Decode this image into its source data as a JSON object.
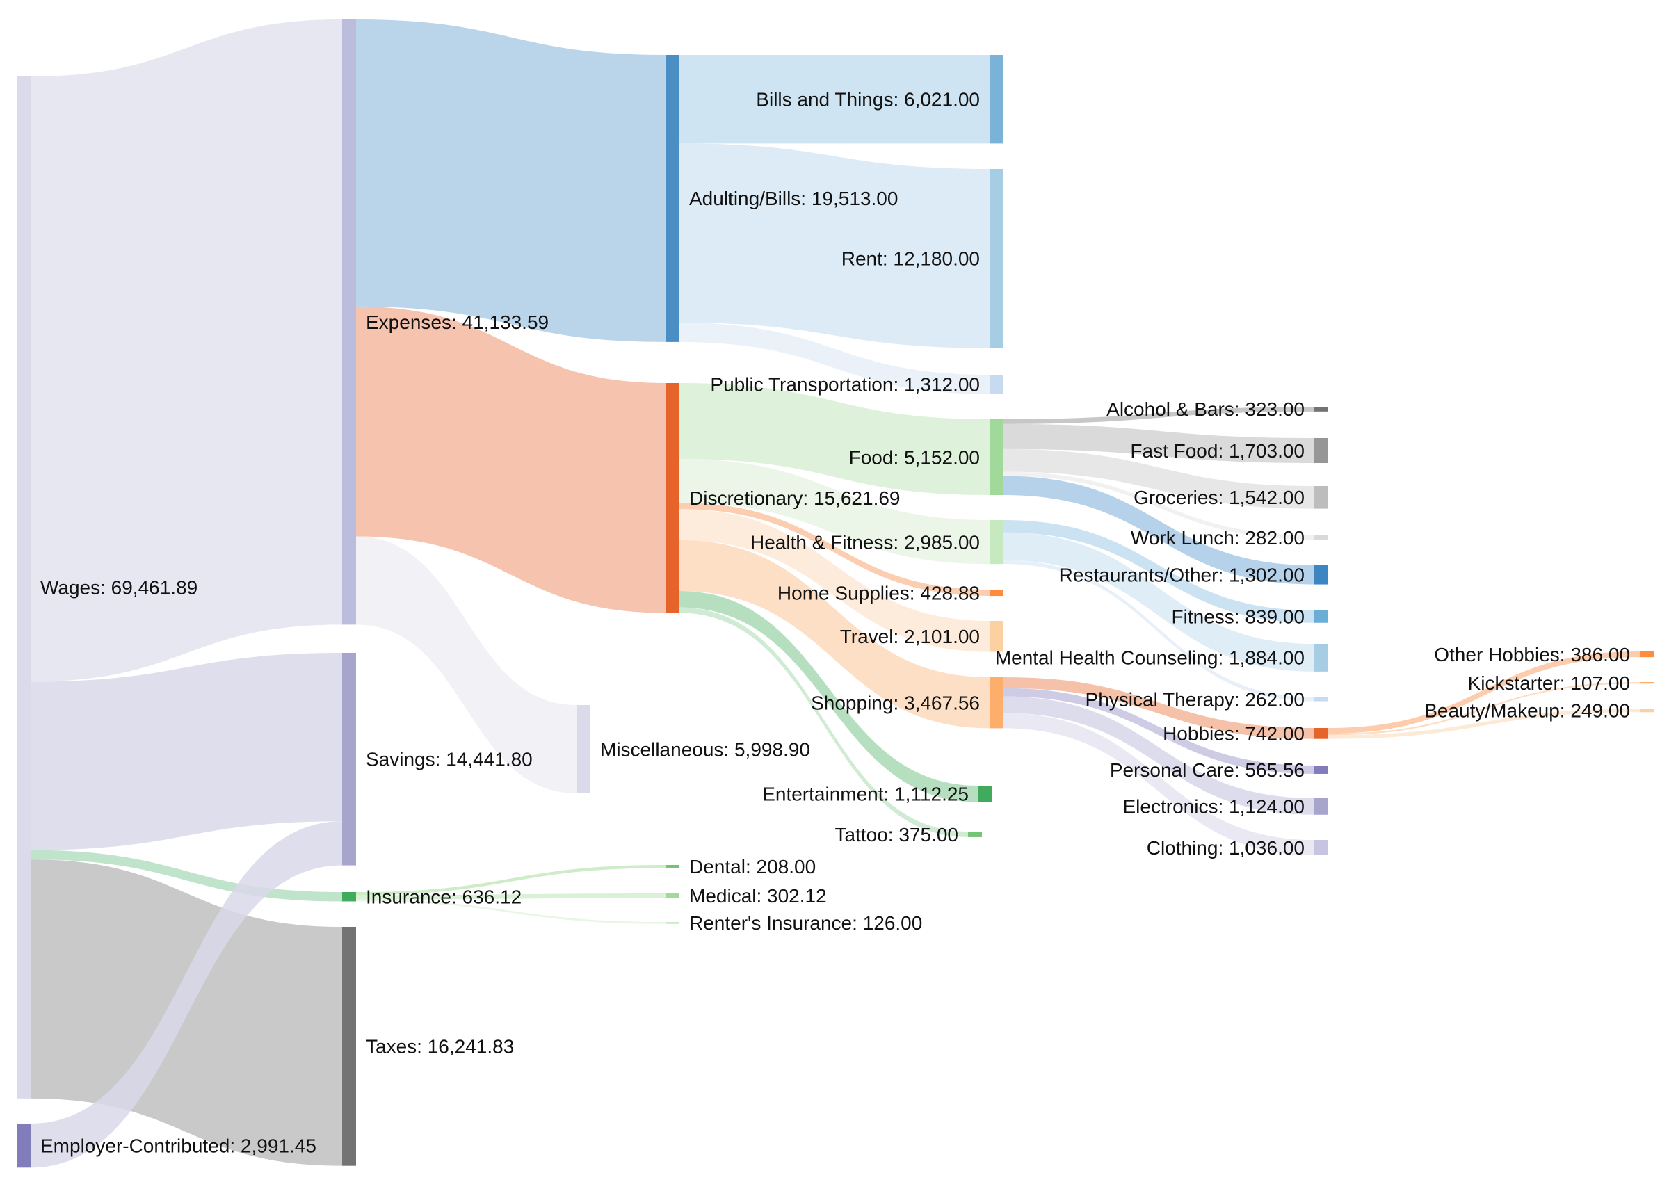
{
  "chart_data": {
    "type": "sankey",
    "title": "",
    "value_format": "comma-2-decimals",
    "nodes": [
      {
        "id": "wages",
        "name": "Wages",
        "value": 69461.89,
        "color": "#dadaeb",
        "link_color": "#e3e3f0"
      },
      {
        "id": "employer",
        "name": "Employer-Contributed",
        "value": 2991.45,
        "color": "#807dba",
        "link_color": "#dcdaeb"
      },
      {
        "id": "expenses",
        "name": "Expenses",
        "value": 41133.59,
        "color": "#bcbddc",
        "link_color": "#e3e3f0"
      },
      {
        "id": "savings",
        "name": "Savings",
        "value": 14441.8,
        "color": "#a8a5cd",
        "link_color": "#d9d8ea"
      },
      {
        "id": "insurance",
        "name": "Insurance",
        "value": 636.12,
        "color": "#41ab5d",
        "link_color": "#b5dfc2"
      },
      {
        "id": "taxes",
        "name": "Taxes",
        "value": 16241.83,
        "color": "#737373",
        "link_color": "#bfbfbf"
      },
      {
        "id": "adulting",
        "name": "Adulting/Bills",
        "value": 19513.0,
        "color": "#4a8ec4",
        "link_color": "#aecde6"
      },
      {
        "id": "discretionary",
        "name": "Discretionary",
        "value": 15621.69,
        "color": "#e6642a",
        "link_color": "#f4b9a0"
      },
      {
        "id": "misc",
        "name": "Miscellaneous",
        "value": 5998.9,
        "color": "#dadaeb",
        "link_color": "#eeeef5"
      },
      {
        "id": "dental",
        "name": "Dental",
        "value": 208.0,
        "color": "#74c476",
        "link_color": "#c7e9c0"
      },
      {
        "id": "medical",
        "name": "Medical",
        "value": 302.12,
        "color": "#a1d99b",
        "link_color": "#d4eed0"
      },
      {
        "id": "renters",
        "name": "Renter's Insurance",
        "value": 126.0,
        "color": "#c7e9c0",
        "link_color": "#e5f4e1"
      },
      {
        "id": "bills",
        "name": "Bills and Things",
        "value": 6021.0,
        "color": "#7bb3d8",
        "link_color": "#c5dff0"
      },
      {
        "id": "rent",
        "name": "Rent",
        "value": 12180.0,
        "color": "#a6cde4",
        "link_color": "#d6e8f4"
      },
      {
        "id": "pubtrans",
        "name": "Public Transportation",
        "value": 1312.0,
        "color": "#c6dbef",
        "link_color": "#e6eff8"
      },
      {
        "id": "food",
        "name": "Food",
        "value": 5152.0,
        "color": "#a1d99b",
        "link_color": "#d8efd4"
      },
      {
        "id": "health",
        "name": "Health & Fitness",
        "value": 2985.0,
        "color": "#c7e9c0",
        "link_color": "#e7f5e4"
      },
      {
        "id": "homesupplies",
        "name": "Home Supplies",
        "value": 428.88,
        "color": "#fd8d3c",
        "link_color": "#fcc5a3"
      },
      {
        "id": "travel",
        "name": "Travel",
        "value": 2101.0,
        "color": "#fdd0a2",
        "link_color": "#fde8d5"
      },
      {
        "id": "shopping",
        "name": "Shopping",
        "value": 3467.56,
        "color": "#fdae6b",
        "link_color": "#fdd9bb"
      },
      {
        "id": "entertainment",
        "name": "Entertainment",
        "value": 1112.25,
        "color": "#41ab5d",
        "link_color": "#a9d9b5"
      },
      {
        "id": "tattoo",
        "name": "Tattoo",
        "value": 375.0,
        "color": "#74c476",
        "link_color": "#c8e8cc"
      },
      {
        "id": "alcohol",
        "name": "Alcohol & Bars",
        "value": 323.0,
        "color": "#737373",
        "link_color": "#bdbdbd"
      },
      {
        "id": "fastfood",
        "name": "Fast Food",
        "value": 1703.0,
        "color": "#969696",
        "link_color": "#d3d3d3"
      },
      {
        "id": "groceries",
        "name": "Groceries",
        "value": 1542.0,
        "color": "#bdbdbd",
        "link_color": "#e3e3e3"
      },
      {
        "id": "worklunch",
        "name": "Work Lunch",
        "value": 282.0,
        "color": "#d9d9d9",
        "link_color": "#eeeeee"
      },
      {
        "id": "restaurants",
        "name": "Restaurants/Other",
        "value": 1302.0,
        "color": "#3e86c2",
        "link_color": "#a9c9e6"
      },
      {
        "id": "fitness",
        "name": "Fitness",
        "value": 839.0,
        "color": "#6aaed6",
        "link_color": "#c2ddf0"
      },
      {
        "id": "mentalhealth",
        "name": "Mental Health Counseling",
        "value": 1884.0,
        "color": "#a6cde4",
        "link_color": "#d9eaf5"
      },
      {
        "id": "pt",
        "name": "Physical Therapy",
        "value": 262.0,
        "color": "#c6dbef",
        "link_color": "#e3edf7"
      },
      {
        "id": "hobbies",
        "name": "Hobbies",
        "value": 742.0,
        "color": "#e6642a",
        "link_color": "#f4b69a"
      },
      {
        "id": "personalcare",
        "name": "Personal Care",
        "value": 565.56,
        "color": "#807dba",
        "link_color": "#c5c3e0"
      },
      {
        "id": "electronics",
        "name": "Electronics",
        "value": 1124.0,
        "color": "#a8a5cd",
        "link_color": "#d7d6ea"
      },
      {
        "id": "clothing",
        "name": "Clothing",
        "value": 1036.0,
        "color": "#c6c4e1",
        "link_color": "#e5e4f1"
      },
      {
        "id": "otherhobbies",
        "name": "Other Hobbies",
        "value": 386.0,
        "color": "#fd8d3c",
        "link_color": "#fcc39e"
      },
      {
        "id": "kickstarter",
        "name": "Kickstarter",
        "value": 107.0,
        "color": "#fdae6b",
        "link_color": "#fdd6b5"
      },
      {
        "id": "beauty",
        "name": "Beauty/Makeup",
        "value": 249.0,
        "color": "#fdd0a2",
        "link_color": "#fde6cf"
      }
    ],
    "links": [
      {
        "source": "wages",
        "target": "expenses",
        "value": 41133.59
      },
      {
        "source": "wages",
        "target": "savings",
        "value": 11450.35
      },
      {
        "source": "wages",
        "target": "insurance",
        "value": 636.12
      },
      {
        "source": "wages",
        "target": "taxes",
        "value": 16241.83
      },
      {
        "source": "employer",
        "target": "savings",
        "value": 2991.45
      },
      {
        "source": "expenses",
        "target": "adulting",
        "value": 19513.0
      },
      {
        "source": "expenses",
        "target": "discretionary",
        "value": 15621.69
      },
      {
        "source": "expenses",
        "target": "misc",
        "value": 5998.9
      },
      {
        "source": "insurance",
        "target": "dental",
        "value": 208.0
      },
      {
        "source": "insurance",
        "target": "medical",
        "value": 302.12
      },
      {
        "source": "insurance",
        "target": "renters",
        "value": 126.0
      },
      {
        "source": "adulting",
        "target": "bills",
        "value": 6021.0
      },
      {
        "source": "adulting",
        "target": "rent",
        "value": 12180.0
      },
      {
        "source": "adulting",
        "target": "pubtrans",
        "value": 1312.0
      },
      {
        "source": "discretionary",
        "target": "food",
        "value": 5152.0
      },
      {
        "source": "discretionary",
        "target": "health",
        "value": 2985.0
      },
      {
        "source": "discretionary",
        "target": "homesupplies",
        "value": 428.88
      },
      {
        "source": "discretionary",
        "target": "travel",
        "value": 2101.0
      },
      {
        "source": "discretionary",
        "target": "shopping",
        "value": 3467.56
      },
      {
        "source": "discretionary",
        "target": "entertainment",
        "value": 1112.25
      },
      {
        "source": "discretionary",
        "target": "tattoo",
        "value": 375.0
      },
      {
        "source": "food",
        "target": "alcohol",
        "value": 323.0
      },
      {
        "source": "food",
        "target": "fastfood",
        "value": 1703.0
      },
      {
        "source": "food",
        "target": "groceries",
        "value": 1542.0
      },
      {
        "source": "food",
        "target": "worklunch",
        "value": 282.0
      },
      {
        "source": "food",
        "target": "restaurants",
        "value": 1302.0
      },
      {
        "source": "health",
        "target": "fitness",
        "value": 839.0
      },
      {
        "source": "health",
        "target": "mentalhealth",
        "value": 1884.0
      },
      {
        "source": "health",
        "target": "pt",
        "value": 262.0
      },
      {
        "source": "shopping",
        "target": "hobbies",
        "value": 742.0
      },
      {
        "source": "shopping",
        "target": "personalcare",
        "value": 565.56
      },
      {
        "source": "shopping",
        "target": "electronics",
        "value": 1124.0
      },
      {
        "source": "shopping",
        "target": "clothing",
        "value": 1036.0
      },
      {
        "source": "hobbies",
        "target": "otherhobbies",
        "value": 386.0
      },
      {
        "source": "hobbies",
        "target": "kickstarter",
        "value": 107.0
      },
      {
        "source": "hobbies",
        "target": "beauty",
        "value": 249.0
      }
    ]
  }
}
